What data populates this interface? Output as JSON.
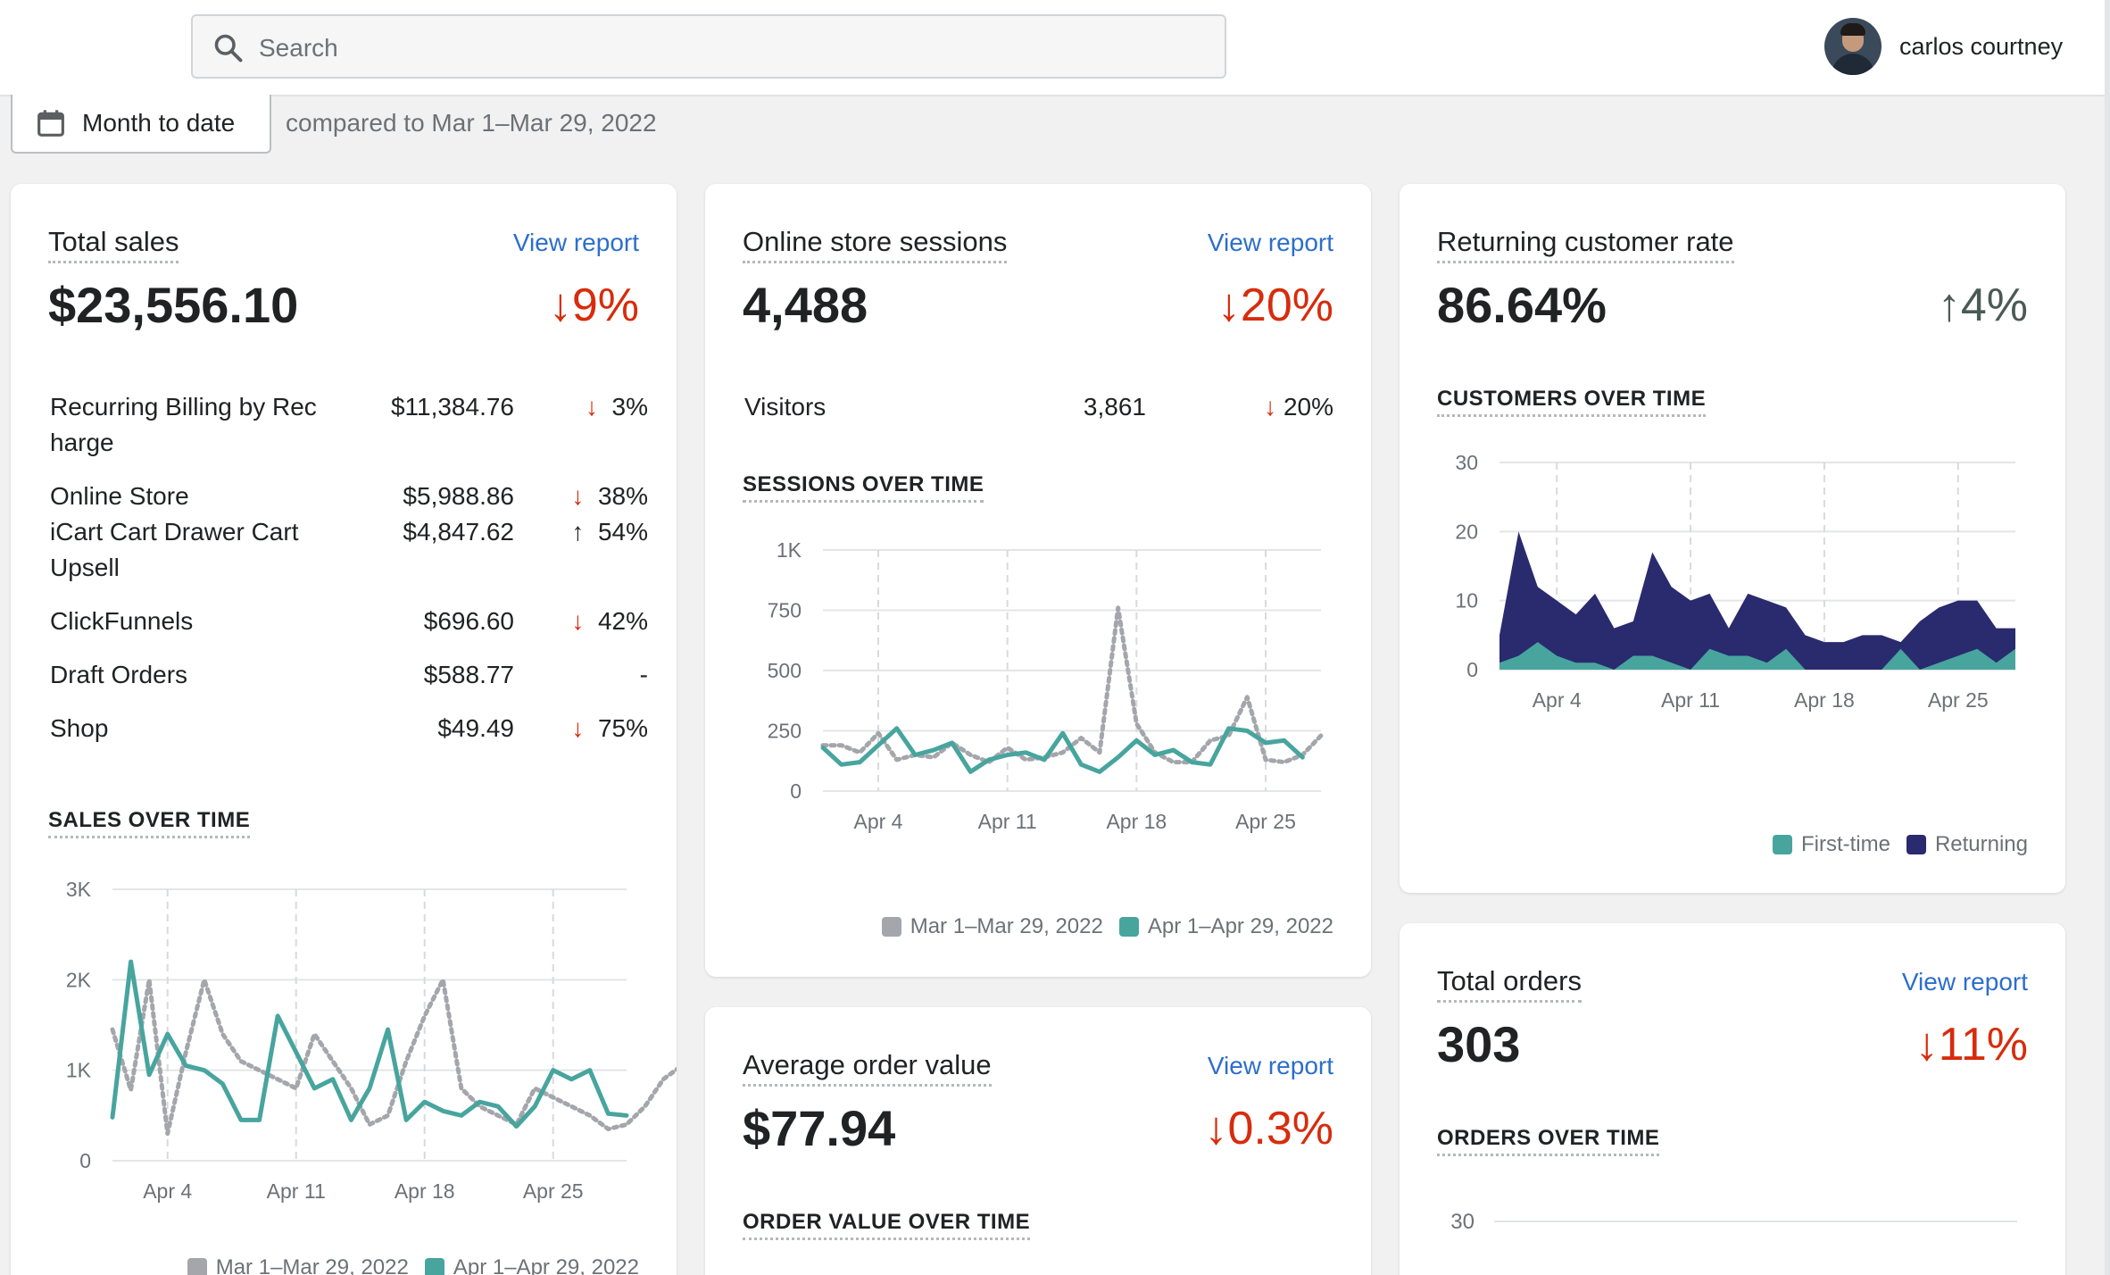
{
  "colors": {
    "current": "#47a59e",
    "previous": "#a4a6ac",
    "returning": "#2a2a6e",
    "first_time": "#47a59e",
    "link": "#2c6ecb",
    "down": "#d72c0d"
  },
  "search": {
    "placeholder": "Search",
    "icon": "search-icon"
  },
  "user": {
    "name": "carlos courtney"
  },
  "date_filter": {
    "label": "Month to date",
    "compare": "compared to Mar 1–Mar 29, 2022"
  },
  "total_sales": {
    "title": "Total sales",
    "view_report": "View report",
    "value": "$23,556.10",
    "delta": "9%",
    "delta_arrow": "↓",
    "rows": [
      {
        "label": "Recurring Billing by Rec harge",
        "value": "$11,384.76",
        "arrow": "↓",
        "change": "3%"
      },
      {
        "label": "Online Store",
        "value": "$5,988.86",
        "arrow": "↓",
        "change": "38%"
      },
      {
        "label": "iCart Cart Drawer Cart Upsell",
        "value": "$4,847.62",
        "arrow": "↑",
        "change": "54%"
      },
      {
        "label": "ClickFunnels",
        "value": "$696.60",
        "arrow": "↓",
        "change": "42%"
      },
      {
        "label": "Draft Orders",
        "value": "$588.77",
        "arrow": "",
        "change": "-"
      },
      {
        "label": "Shop",
        "value": "$49.49",
        "arrow": "↓",
        "change": "75%"
      }
    ],
    "section": "SALES OVER TIME",
    "legend": [
      "Mar 1–Mar 29, 2022",
      "Apr 1–Apr 29, 2022"
    ]
  },
  "sessions": {
    "title": "Online store sessions",
    "view_report": "View report",
    "value": "4,488",
    "delta": "20%",
    "delta_arrow": "↓",
    "visitors": {
      "label": "Visitors",
      "value": "3,861",
      "arrow": "↓",
      "change": "20%"
    },
    "section": "SESSIONS OVER TIME",
    "legend": [
      "Mar 1–Mar 29, 2022",
      "Apr 1–Apr 29, 2022"
    ]
  },
  "returning": {
    "title": "Returning customer rate",
    "value": "86.64%",
    "delta": "4%",
    "delta_arrow": "↑",
    "section": "CUSTOMERS OVER TIME",
    "legend": [
      "First-time",
      "Returning"
    ]
  },
  "aov": {
    "title": "Average order value",
    "view_report": "View report",
    "value": "$77.94",
    "delta": "0.3%",
    "delta_arrow": "↓",
    "section": "ORDER VALUE OVER TIME"
  },
  "orders": {
    "title": "Total orders",
    "view_report": "View report",
    "value": "303",
    "delta": "11%",
    "delta_arrow": "↓",
    "section": "ORDERS OVER TIME",
    "y_tick_top": "30"
  },
  "chart_data": [
    {
      "type": "line",
      "title": "SALES OVER TIME",
      "x_ticks": [
        "Apr 4",
        "Apr 11",
        "Apr 18",
        "Apr 25"
      ],
      "y_ticks": [
        "0",
        "1K",
        "2K",
        "3K"
      ],
      "ylim": [
        0,
        3000
      ],
      "series": [
        {
          "name": "Mar 1–Mar 29, 2022",
          "style": "dotted",
          "values": [
            1450,
            780,
            2000,
            300,
            1200,
            2000,
            1400,
            1100,
            1000,
            900,
            800,
            1400,
            1100,
            800,
            400,
            500,
            1100,
            1600,
            2000,
            800,
            600,
            500,
            400,
            800,
            700,
            600,
            500,
            350,
            400,
            600,
            900,
            1050
          ]
        },
        {
          "name": "Apr 1–Apr 29, 2022",
          "style": "solid",
          "values": [
            480,
            2200,
            950,
            1400,
            1050,
            1000,
            850,
            450,
            450,
            1600,
            1200,
            800,
            900,
            450,
            800,
            1450,
            450,
            650,
            550,
            500,
            650,
            600,
            380,
            600,
            1000,
            900,
            1000,
            520,
            500
          ]
        }
      ]
    },
    {
      "type": "line",
      "title": "SESSIONS OVER TIME",
      "x_ticks": [
        "Apr 4",
        "Apr 11",
        "Apr 18",
        "Apr 25"
      ],
      "y_ticks": [
        "0",
        "250",
        "500",
        "750",
        "1K"
      ],
      "ylim": [
        0,
        1000
      ],
      "series": [
        {
          "name": "Mar 1–Mar 29, 2022",
          "style": "dotted",
          "values": [
            190,
            190,
            160,
            240,
            130,
            150,
            140,
            200,
            150,
            120,
            180,
            130,
            140,
            160,
            220,
            160,
            760,
            280,
            160,
            120,
            120,
            210,
            230,
            390,
            130,
            120,
            150,
            230
          ]
        },
        {
          "name": "Apr 1–Apr 29, 2022",
          "style": "solid",
          "values": [
            180,
            110,
            120,
            190,
            260,
            150,
            170,
            200,
            80,
            130,
            150,
            160,
            130,
            240,
            110,
            80,
            140,
            210,
            150,
            170,
            120,
            110,
            260,
            250,
            200,
            210,
            140
          ]
        }
      ]
    },
    {
      "type": "area",
      "title": "CUSTOMERS OVER TIME",
      "x_ticks": [
        "Apr 4",
        "Apr 11",
        "Apr 18",
        "Apr 25"
      ],
      "y_ticks": [
        "0",
        "10",
        "20",
        "30"
      ],
      "ylim": [
        0,
        30
      ],
      "series": [
        {
          "name": "First-time",
          "values": [
            1,
            2,
            4,
            2,
            1,
            1,
            0,
            2,
            2,
            1,
            0,
            3,
            2,
            2,
            1,
            3,
            0,
            0,
            0,
            0,
            0,
            3,
            0,
            1,
            2,
            3,
            1,
            3
          ]
        },
        {
          "name": "Returning",
          "values": [
            5,
            20,
            12,
            10,
            8,
            11,
            6,
            7,
            17,
            12,
            10,
            11,
            6,
            11,
            10,
            9,
            5,
            4,
            4,
            5,
            5,
            4,
            7,
            9,
            10,
            10,
            6,
            6
          ]
        }
      ]
    }
  ]
}
